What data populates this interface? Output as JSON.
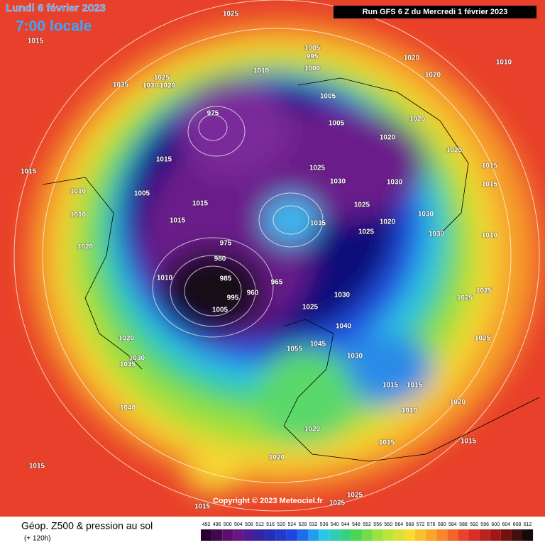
{
  "header": {
    "title": "Lundi 6 février 2023",
    "time": "7:00 locale",
    "run": "Run GFS 6 Z du Mercredi 1 février 2023"
  },
  "copyright": "Copyright © 2023 Meteociel.fr",
  "pressure_labels": [
    1025,
    1015,
    1035,
    1025,
    1030,
    1020,
    1005,
    995,
    1000,
    1010,
    1020,
    1020,
    1010,
    1005,
    1005,
    975,
    1020,
    1020,
    1020,
    1015,
    1015,
    1025,
    1030,
    1030,
    1015,
    1015,
    1005,
    1015,
    1025,
    1035,
    1030,
    1020,
    1025,
    1010,
    1020,
    1015,
    975,
    980,
    1010,
    985,
    960,
    965,
    995,
    1005,
    1030,
    1025,
    1040,
    1045,
    1055,
    1030,
    1015,
    1015,
    1020,
    1030,
    1035,
    1040,
    1010,
    1020,
    1020,
    1020,
    1015,
    1015,
    1015,
    1025,
    1025,
    1015,
    1025,
    1025,
    1025,
    1010,
    1030,
    1010
  ],
  "legend": {
    "title": "Géop. Z500 & pression au sol",
    "lead": "(+ 120h)",
    "scale": [
      492,
      496,
      500,
      504,
      508,
      512,
      516,
      520,
      524,
      528,
      532,
      536,
      540,
      544,
      548,
      552,
      556,
      560,
      564,
      568,
      572,
      576,
      580,
      584,
      588,
      592,
      596,
      600,
      604,
      608,
      612
    ]
  }
}
